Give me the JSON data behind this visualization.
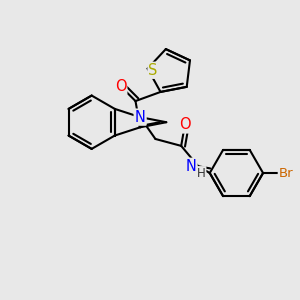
{
  "bg_color": "#e8e8e8",
  "bond_color": "#000000",
  "bond_width": 1.5,
  "atom_colors": {
    "O": "#ff0000",
    "N": "#0000ff",
    "S": "#aaaa00",
    "Br": "#cc6600",
    "C": "#000000"
  },
  "font_size": 9.5,
  "fig_width": 3.0,
  "fig_height": 3.0,
  "dpi": 100,
  "xlim": [
    -2.3,
    2.7
  ],
  "ylim": [
    -2.8,
    2.5
  ]
}
